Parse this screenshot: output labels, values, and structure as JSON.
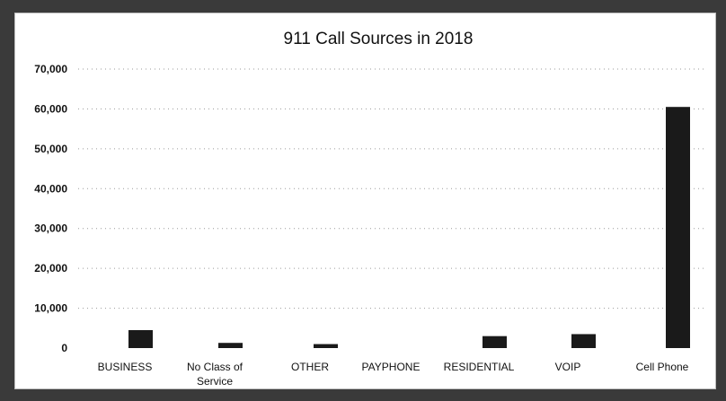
{
  "chart_data": {
    "type": "bar",
    "title": "911 Call Sources in 2018",
    "xlabel": "",
    "ylabel": "",
    "categories": [
      "BUSINESS",
      "No Class of Service",
      "OTHER",
      "PAYPHONE",
      "RESIDENTIAL",
      "VOIP",
      "Cell Phone"
    ],
    "category_lines": [
      [
        "BUSINESS"
      ],
      [
        "No Class of",
        "Service"
      ],
      [
        "OTHER"
      ],
      [
        "PAYPHONE"
      ],
      [
        "RESIDENTIAL"
      ],
      [
        "VOIP"
      ],
      [
        "Cell Phone"
      ]
    ],
    "values": [
      4500,
      1300,
      1000,
      0,
      3000,
      3500,
      60500
    ],
    "ylim": [
      0,
      70000
    ],
    "yticks": [
      0,
      10000,
      20000,
      30000,
      40000,
      50000,
      60000,
      70000
    ],
    "ytick_labels": [
      "0",
      "10,000",
      "20,000",
      "30,000",
      "40,000",
      "50,000",
      "60,000",
      "70,000"
    ],
    "grid": true,
    "legend": "none",
    "bar_color": "#1a1a1a"
  }
}
